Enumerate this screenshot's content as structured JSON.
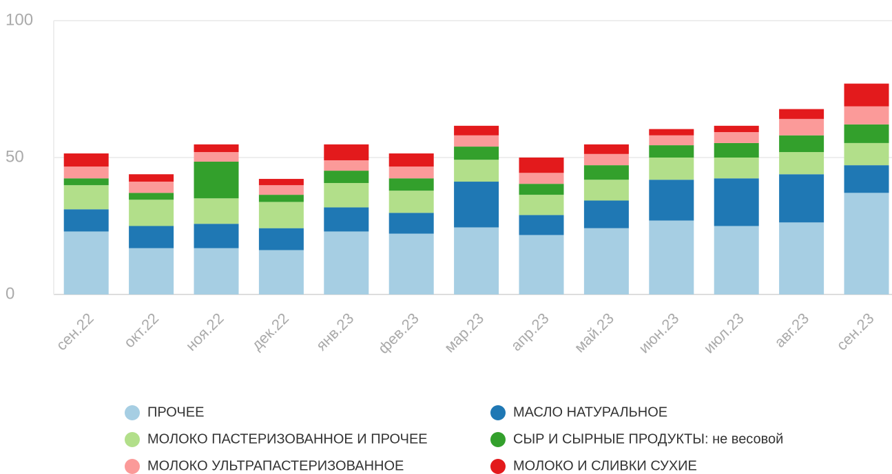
{
  "chart_data": {
    "type": "stacked_bar",
    "categories": [
      "сен.22",
      "окт.22",
      "ноя.22",
      "дек.22",
      "янв.23",
      "фев.23",
      "мар.23",
      "апр.23",
      "май.23",
      "июн.23",
      "июл.23",
      "авг.23",
      "сен.23"
    ],
    "series": [
      {
        "name": "ПРОЧЕЕ",
        "color": "#a6cee3",
        "values": [
          23.0,
          16.9,
          16.9,
          16.2,
          23.0,
          22.2,
          24.5,
          21.7,
          24.2,
          27.0,
          25.0,
          26.3,
          37.1
        ]
      },
      {
        "name": "МАСЛО НАТУРАЛЬНОЕ",
        "color": "#1f78b4",
        "values": [
          8.1,
          8.1,
          8.9,
          8.0,
          8.8,
          7.6,
          16.7,
          7.3,
          10.1,
          14.9,
          17.4,
          17.6,
          10.1
        ]
      },
      {
        "name": "МОЛОКО ПАСТЕРИЗОВАННОЕ И ПРОЧЕЕ",
        "color": "#b2df8a",
        "values": [
          8.8,
          9.6,
          9.3,
          9.6,
          8.9,
          8.1,
          8.0,
          7.4,
          7.6,
          8.1,
          7.6,
          8.1,
          8.1
        ]
      },
      {
        "name": "СЫР И СЫРНЫЕ ПРОДУКТЫ: не весовой",
        "color": "#33a02c",
        "values": [
          2.5,
          2.5,
          13.4,
          2.6,
          4.5,
          4.5,
          4.8,
          4.0,
          5.3,
          4.5,
          5.3,
          6.1,
          6.8
        ]
      },
      {
        "name": "МОЛОКО УЛЬТРАПАСТЕРИЗОВАННОЕ",
        "color": "#fb9a99",
        "values": [
          4.3,
          4.1,
          3.5,
          3.5,
          3.8,
          4.3,
          4.1,
          4.0,
          4.1,
          3.6,
          4.0,
          6.0,
          6.6
        ]
      },
      {
        "name": "МОЛОКО И СЛИВКИ СУХИЕ",
        "color": "#e31a1c",
        "values": [
          4.8,
          2.7,
          2.8,
          2.3,
          5.8,
          4.8,
          3.5,
          5.6,
          3.5,
          2.3,
          2.3,
          3.6,
          8.3
        ]
      }
    ],
    "ylim": [
      0,
      100
    ],
    "yticks": [
      0,
      50,
      100
    ],
    "grid": true
  }
}
